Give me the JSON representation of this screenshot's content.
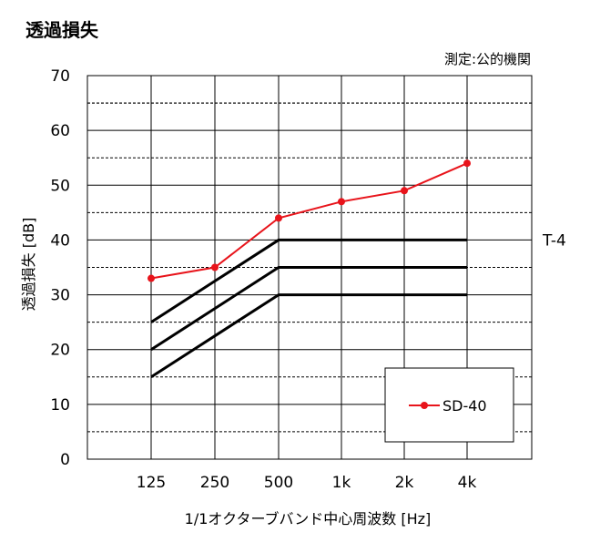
{
  "title": "透過損失",
  "measurement_note": "測定:公的機関",
  "chart_data": {
    "type": "line",
    "categories": [
      "125",
      "250",
      "500",
      "1k",
      "2k",
      "4k"
    ],
    "xlabel": "1/1オクターブバンド中心周波数 [Hz]",
    "ylabel": "透過損失 [dB]",
    "ylim": [
      0,
      70
    ],
    "yticks": [
      0,
      10,
      20,
      30,
      40,
      50,
      60,
      70
    ],
    "grid": true,
    "series": [
      {
        "name": "SD-40",
        "values": [
          33,
          35,
          44,
          47,
          49,
          54
        ],
        "color": "#e8141b",
        "marker": "circle"
      }
    ],
    "reference_lines": [
      {
        "label": "T-4",
        "values": [
          25,
          32.5,
          40,
          40,
          40,
          40
        ],
        "color": "#000000"
      },
      {
        "label": "",
        "values": [
          20,
          27.5,
          35,
          35,
          35,
          35
        ],
        "color": "#000000"
      },
      {
        "label": "",
        "values": [
          15,
          22.5,
          30,
          30,
          30,
          30
        ],
        "color": "#000000"
      }
    ],
    "legend_position": "bottom-right"
  }
}
